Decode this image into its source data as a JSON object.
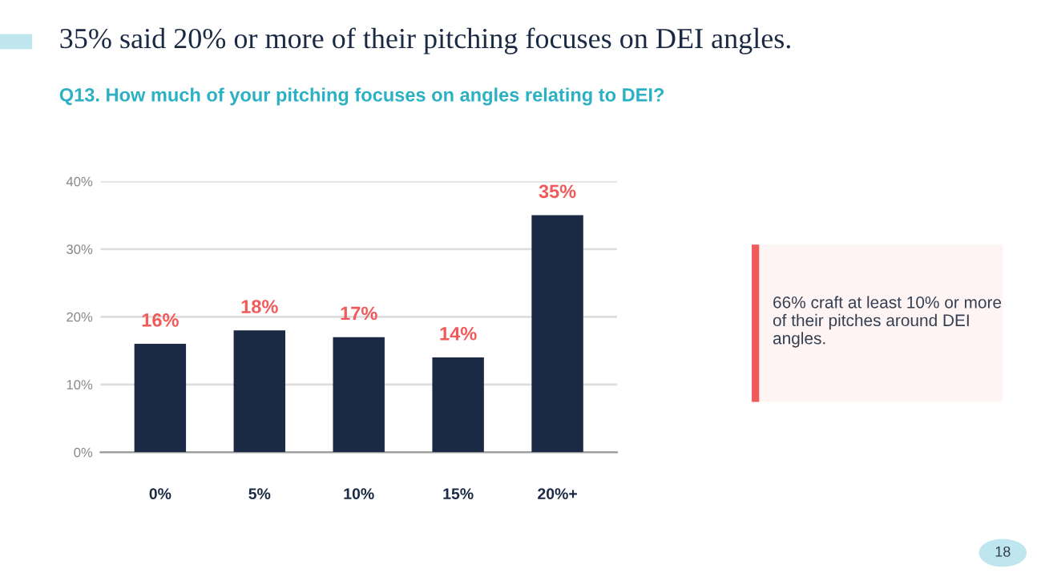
{
  "chart_data": {
    "type": "bar",
    "title": "35% said 20% or more of their pitching focuses on DEI angles.",
    "subtitle": "Q13. How much of your pitching focuses on angles relating to DEI?",
    "categories": [
      "0%",
      "5%",
      "10%",
      "15%",
      "20%+"
    ],
    "values": [
      16,
      18,
      17,
      14,
      35
    ],
    "color": "#1b2a44",
    "value_labels": [
      "16%",
      "18%",
      "17%",
      "14%",
      "35%"
    ],
    "ylim": [
      0,
      40
    ],
    "yticks": [
      {
        "value": 0,
        "label": "0%"
      },
      {
        "value": 10,
        "label": "10%"
      },
      {
        "value": 20,
        "label": "20%"
      },
      {
        "value": 30,
        "label": "30%"
      },
      {
        "value": 40,
        "label": "40%"
      }
    ],
    "grid": "y",
    "annotations": [
      "66% craft at least 10% or more of their pitches around DEI angles.",
      "18"
    ]
  }
}
